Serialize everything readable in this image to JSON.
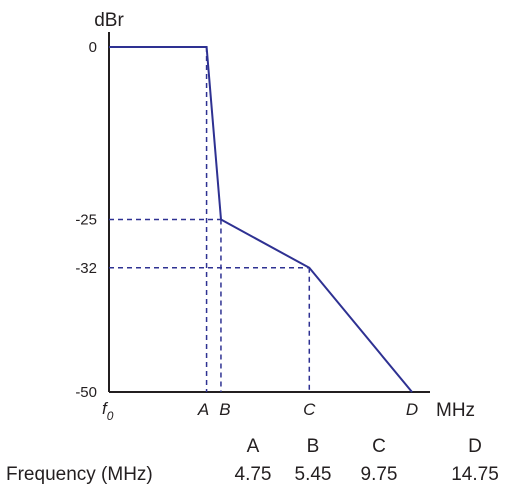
{
  "chart_data": {
    "type": "line",
    "ylabel": "dBr",
    "xlabel": "MHz",
    "origin_label": "f",
    "origin_subscript": "0",
    "yticks": [
      "0",
      "-25",
      "-32",
      "-50"
    ],
    "ylim": [
      -50,
      0
    ],
    "grid": false,
    "legend": "none",
    "colors": {
      "curve": "#2e3192",
      "axis": "#231f20"
    },
    "points": [
      {
        "label": "",
        "x": 0,
        "y": 0
      },
      {
        "label": "A",
        "x": 4.75,
        "y": 0
      },
      {
        "label": "B",
        "x": 5.45,
        "y": -25
      },
      {
        "label": "C",
        "x": 9.75,
        "y": -32
      },
      {
        "label": "D",
        "x": 14.75,
        "y": -50
      }
    ],
    "guides": [
      {
        "point": "A",
        "to": "x"
      },
      {
        "point": "B",
        "to": "both"
      },
      {
        "point": "C",
        "to": "both"
      }
    ]
  },
  "table": {
    "row_label": "Frequency (MHz)",
    "columns": [
      {
        "label": "A",
        "value": "4.75"
      },
      {
        "label": "B",
        "value": "5.45"
      },
      {
        "label": "C",
        "value": "9.75"
      },
      {
        "label": "D",
        "value": "14.75"
      }
    ]
  }
}
